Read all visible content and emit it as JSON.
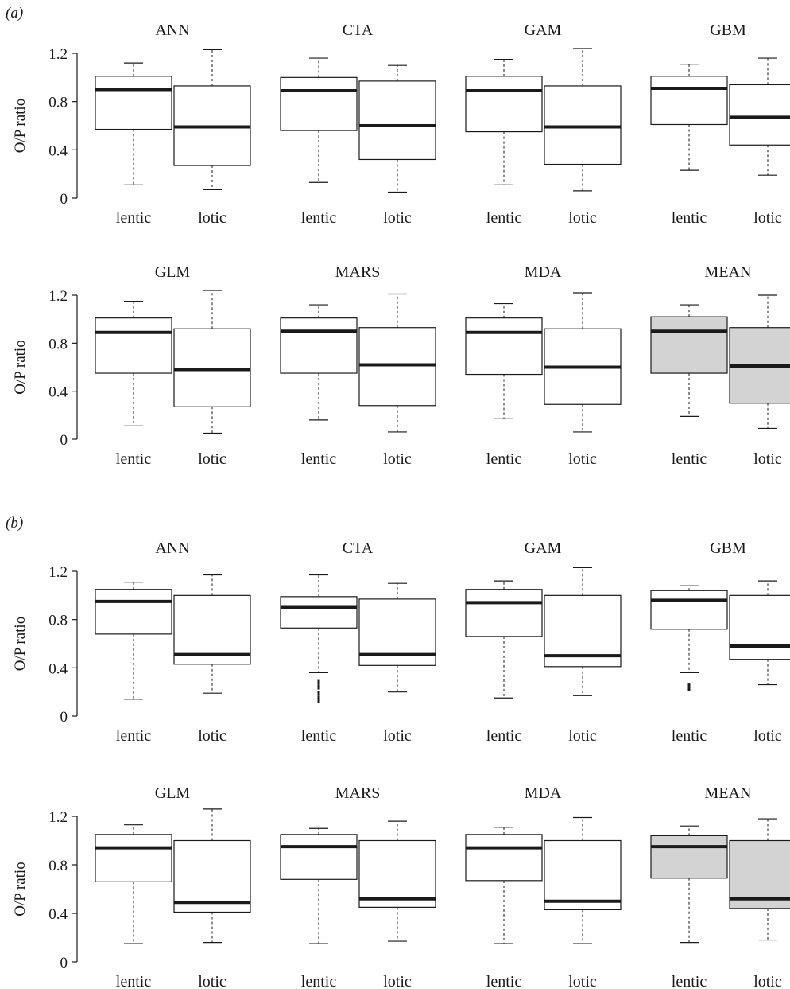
{
  "chart_data": {
    "type": "box",
    "ylabel": "O/P ratio",
    "ylim": [
      0,
      1.2
    ],
    "yticks": [
      "0",
      "0.4",
      "0.8",
      "1.2"
    ],
    "categories": [
      "lentic",
      "lotic"
    ],
    "colors": {
      "box": "#ffffff",
      "mean_box": "#d3d3d3",
      "line": "#1a1a1a"
    },
    "panels": [
      {
        "label": "(a)",
        "models": [
          {
            "name": "ANN",
            "boxes": [
              {
                "category": "lentic",
                "min": 0.11,
                "q1": 0.57,
                "median": 0.9,
                "q3": 1.01,
                "max": 1.12,
                "outliers": []
              },
              {
                "category": "lotic",
                "min": 0.07,
                "q1": 0.27,
                "median": 0.59,
                "q3": 0.93,
                "max": 1.23,
                "outliers": []
              }
            ]
          },
          {
            "name": "CTA",
            "boxes": [
              {
                "category": "lentic",
                "min": 0.13,
                "q1": 0.56,
                "median": 0.89,
                "q3": 1.0,
                "max": 1.16,
                "outliers": []
              },
              {
                "category": "lotic",
                "min": 0.05,
                "q1": 0.32,
                "median": 0.6,
                "q3": 0.97,
                "max": 1.1,
                "outliers": []
              }
            ]
          },
          {
            "name": "GAM",
            "boxes": [
              {
                "category": "lentic",
                "min": 0.11,
                "q1": 0.55,
                "median": 0.89,
                "q3": 1.01,
                "max": 1.15,
                "outliers": []
              },
              {
                "category": "lotic",
                "min": 0.06,
                "q1": 0.28,
                "median": 0.59,
                "q3": 0.93,
                "max": 1.24,
                "outliers": []
              }
            ]
          },
          {
            "name": "GBM",
            "boxes": [
              {
                "category": "lentic",
                "min": 0.23,
                "q1": 0.61,
                "median": 0.91,
                "q3": 1.01,
                "max": 1.11,
                "outliers": []
              },
              {
                "category": "lotic",
                "min": 0.19,
                "q1": 0.44,
                "median": 0.67,
                "q3": 0.94,
                "max": 1.16,
                "outliers": []
              }
            ]
          },
          {
            "name": "GLM",
            "boxes": [
              {
                "category": "lentic",
                "min": 0.11,
                "q1": 0.55,
                "median": 0.89,
                "q3": 1.01,
                "max": 1.15,
                "outliers": []
              },
              {
                "category": "lotic",
                "min": 0.05,
                "q1": 0.27,
                "median": 0.58,
                "q3": 0.92,
                "max": 1.24,
                "outliers": []
              }
            ]
          },
          {
            "name": "MARS",
            "boxes": [
              {
                "category": "lentic",
                "min": 0.16,
                "q1": 0.55,
                "median": 0.9,
                "q3": 1.01,
                "max": 1.12,
                "outliers": []
              },
              {
                "category": "lotic",
                "min": 0.06,
                "q1": 0.28,
                "median": 0.62,
                "q3": 0.93,
                "max": 1.21,
                "outliers": []
              }
            ]
          },
          {
            "name": "MDA",
            "boxes": [
              {
                "category": "lentic",
                "min": 0.17,
                "q1": 0.54,
                "median": 0.89,
                "q3": 1.01,
                "max": 1.13,
                "outliers": []
              },
              {
                "category": "lotic",
                "min": 0.06,
                "q1": 0.29,
                "median": 0.6,
                "q3": 0.92,
                "max": 1.22,
                "outliers": []
              }
            ]
          },
          {
            "name": "MEAN",
            "shaded": true,
            "boxes": [
              {
                "category": "lentic",
                "min": 0.19,
                "q1": 0.55,
                "median": 0.9,
                "q3": 1.02,
                "max": 1.12,
                "outliers": []
              },
              {
                "category": "lotic",
                "min": 0.09,
                "q1": 0.3,
                "median": 0.61,
                "q3": 0.93,
                "max": 1.2,
                "outliers": []
              }
            ]
          }
        ]
      },
      {
        "label": "(b)",
        "models": [
          {
            "name": "ANN",
            "boxes": [
              {
                "category": "lentic",
                "min": 0.14,
                "q1": 0.68,
                "median": 0.95,
                "q3": 1.05,
                "max": 1.11,
                "outliers": []
              },
              {
                "category": "lotic",
                "min": 0.19,
                "q1": 0.43,
                "median": 0.51,
                "q3": 1.0,
                "max": 1.17,
                "outliers": []
              }
            ]
          },
          {
            "name": "CTA",
            "boxes": [
              {
                "category": "lentic",
                "min": 0.36,
                "q1": 0.73,
                "median": 0.9,
                "q3": 0.99,
                "max": 1.17,
                "outliers": [
                  0.28,
                  0.24,
                  0.19,
                  0.15,
                  0.13
                ]
              },
              {
                "category": "lotic",
                "min": 0.2,
                "q1": 0.42,
                "median": 0.51,
                "q3": 0.97,
                "max": 1.1,
                "outliers": []
              }
            ]
          },
          {
            "name": "GAM",
            "boxes": [
              {
                "category": "lentic",
                "min": 0.15,
                "q1": 0.66,
                "median": 0.94,
                "q3": 1.05,
                "max": 1.12,
                "outliers": []
              },
              {
                "category": "lotic",
                "min": 0.17,
                "q1": 0.41,
                "median": 0.5,
                "q3": 1.0,
                "max": 1.23,
                "outliers": []
              }
            ]
          },
          {
            "name": "GBM",
            "boxes": [
              {
                "category": "lentic",
                "min": 0.36,
                "q1": 0.72,
                "median": 0.96,
                "q3": 1.04,
                "max": 1.08,
                "outliers": [
                  0.25,
                  0.23
                ]
              },
              {
                "category": "lotic",
                "min": 0.26,
                "q1": 0.47,
                "median": 0.58,
                "q3": 1.0,
                "max": 1.12,
                "outliers": []
              }
            ]
          },
          {
            "name": "GLM",
            "boxes": [
              {
                "category": "lentic",
                "min": 0.15,
                "q1": 0.66,
                "median": 0.94,
                "q3": 1.05,
                "max": 1.13,
                "outliers": []
              },
              {
                "category": "lotic",
                "min": 0.16,
                "q1": 0.41,
                "median": 0.49,
                "q3": 1.0,
                "max": 1.26,
                "outliers": []
              }
            ]
          },
          {
            "name": "MARS",
            "boxes": [
              {
                "category": "lentic",
                "min": 0.15,
                "q1": 0.68,
                "median": 0.95,
                "q3": 1.05,
                "max": 1.1,
                "outliers": []
              },
              {
                "category": "lotic",
                "min": 0.17,
                "q1": 0.45,
                "median": 0.52,
                "q3": 1.0,
                "max": 1.16,
                "outliers": []
              }
            ]
          },
          {
            "name": "MDA",
            "boxes": [
              {
                "category": "lentic",
                "min": 0.15,
                "q1": 0.67,
                "median": 0.94,
                "q3": 1.05,
                "max": 1.11,
                "outliers": []
              },
              {
                "category": "lotic",
                "min": 0.15,
                "q1": 0.43,
                "median": 0.5,
                "q3": 1.0,
                "max": 1.19,
                "outliers": []
              }
            ]
          },
          {
            "name": "MEAN",
            "shaded": true,
            "boxes": [
              {
                "category": "lentic",
                "min": 0.16,
                "q1": 0.69,
                "median": 0.95,
                "q3": 1.04,
                "max": 1.12,
                "outliers": []
              },
              {
                "category": "lotic",
                "min": 0.18,
                "q1": 0.44,
                "median": 0.52,
                "q3": 1.0,
                "max": 1.18,
                "outliers": []
              }
            ]
          }
        ]
      }
    ]
  }
}
